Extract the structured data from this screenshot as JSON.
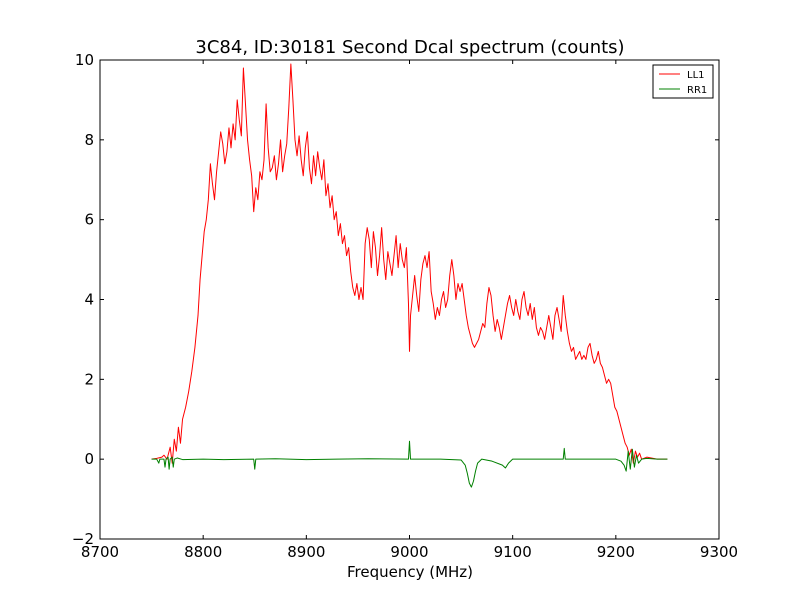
{
  "chart_data": {
    "type": "line",
    "title": "3C84, ID:30181 Second Dcal spectrum (counts)",
    "xlabel": "Frequency (MHz)",
    "ylabel": "",
    "xlim": [
      8700,
      9300
    ],
    "ylim": [
      -2,
      10
    ],
    "xticks": [
      8700,
      8800,
      8900,
      9000,
      9100,
      9200,
      9300
    ],
    "yticks": [
      -2,
      0,
      2,
      4,
      6,
      8,
      10
    ],
    "legend_position": "top-right",
    "grid": false,
    "series": [
      {
        "name": "LL1",
        "color": "#ff0000",
        "points": [
          [
            8750,
            0.0
          ],
          [
            8755,
            0.02
          ],
          [
            8760,
            0.05
          ],
          [
            8762,
            0.1
          ],
          [
            8765,
            0.0
          ],
          [
            8768,
            0.3
          ],
          [
            8770,
            -0.1
          ],
          [
            8772,
            0.5
          ],
          [
            8774,
            0.2
          ],
          [
            8776,
            0.8
          ],
          [
            8778,
            0.4
          ],
          [
            8780,
            1.0
          ],
          [
            8783,
            1.3
          ],
          [
            8786,
            1.7
          ],
          [
            8789,
            2.2
          ],
          [
            8792,
            2.8
          ],
          [
            8795,
            3.6
          ],
          [
            8797,
            4.5
          ],
          [
            8799,
            5.1
          ],
          [
            8801,
            5.7
          ],
          [
            8803,
            6.0
          ],
          [
            8805,
            6.5
          ],
          [
            8807,
            7.4
          ],
          [
            8809,
            6.9
          ],
          [
            8811,
            6.5
          ],
          [
            8813,
            7.2
          ],
          [
            8815,
            7.7
          ],
          [
            8817,
            8.2
          ],
          [
            8819,
            7.9
          ],
          [
            8821,
            7.4
          ],
          [
            8823,
            7.7
          ],
          [
            8825,
            8.3
          ],
          [
            8827,
            7.8
          ],
          [
            8829,
            8.4
          ],
          [
            8831,
            8.0
          ],
          [
            8833,
            9.0
          ],
          [
            8835,
            8.5
          ],
          [
            8837,
            8.1
          ],
          [
            8839,
            9.8
          ],
          [
            8841,
            8.9
          ],
          [
            8843,
            8.0
          ],
          [
            8845,
            7.5
          ],
          [
            8847,
            7.1
          ],
          [
            8849,
            6.2
          ],
          [
            8851,
            6.8
          ],
          [
            8853,
            6.5
          ],
          [
            8855,
            7.2
          ],
          [
            8857,
            7.0
          ],
          [
            8859,
            7.5
          ],
          [
            8861,
            8.9
          ],
          [
            8863,
            7.8
          ],
          [
            8865,
            7.2
          ],
          [
            8867,
            7.3
          ],
          [
            8869,
            7.6
          ],
          [
            8871,
            7.0
          ],
          [
            8873,
            7.4
          ],
          [
            8875,
            8.0
          ],
          [
            8877,
            7.2
          ],
          [
            8879,
            7.6
          ],
          [
            8881,
            7.9
          ],
          [
            8883,
            8.8
          ],
          [
            8885,
            9.9
          ],
          [
            8887,
            9.0
          ],
          [
            8889,
            8.0
          ],
          [
            8891,
            7.6
          ],
          [
            8893,
            8.1
          ],
          [
            8895,
            7.5
          ],
          [
            8897,
            7.1
          ],
          [
            8899,
            7.8
          ],
          [
            8901,
            8.2
          ],
          [
            8903,
            7.3
          ],
          [
            8905,
            6.9
          ],
          [
            8907,
            7.6
          ],
          [
            8909,
            7.1
          ],
          [
            8911,
            7.7
          ],
          [
            8913,
            7.3
          ],
          [
            8915,
            7.0
          ],
          [
            8917,
            7.5
          ],
          [
            8919,
            6.6
          ],
          [
            8921,
            6.9
          ],
          [
            8923,
            6.3
          ],
          [
            8925,
            6.6
          ],
          [
            8927,
            6.0
          ],
          [
            8929,
            6.2
          ],
          [
            8931,
            5.6
          ],
          [
            8933,
            5.9
          ],
          [
            8935,
            5.4
          ],
          [
            8937,
            5.6
          ],
          [
            8939,
            5.1
          ],
          [
            8941,
            5.3
          ],
          [
            8943,
            4.7
          ],
          [
            8945,
            4.3
          ],
          [
            8947,
            4.1
          ],
          [
            8949,
            4.4
          ],
          [
            8951,
            4.0
          ],
          [
            8953,
            4.3
          ],
          [
            8955,
            4.0
          ],
          [
            8957,
            5.4
          ],
          [
            8959,
            5.8
          ],
          [
            8961,
            5.5
          ],
          [
            8963,
            4.8
          ],
          [
            8965,
            5.7
          ],
          [
            8967,
            5.3
          ],
          [
            8969,
            4.6
          ],
          [
            8971,
            5.1
          ],
          [
            8973,
            5.8
          ],
          [
            8975,
            5.0
          ],
          [
            8977,
            4.5
          ],
          [
            8979,
            5.2
          ],
          [
            8981,
            4.9
          ],
          [
            8983,
            4.6
          ],
          [
            8985,
            5.1
          ],
          [
            8987,
            5.6
          ],
          [
            8989,
            4.8
          ],
          [
            8991,
            5.4
          ],
          [
            8993,
            5.0
          ],
          [
            8995,
            4.8
          ],
          [
            8997,
            5.3
          ],
          [
            8999,
            3.9
          ],
          [
            9000,
            2.7
          ],
          [
            9001,
            3.6
          ],
          [
            9003,
            4.1
          ],
          [
            9005,
            4.6
          ],
          [
            9007,
            4.1
          ],
          [
            9009,
            3.7
          ],
          [
            9011,
            4.5
          ],
          [
            9013,
            4.9
          ],
          [
            9015,
            5.1
          ],
          [
            9017,
            4.8
          ],
          [
            9019,
            5.2
          ],
          [
            9021,
            4.2
          ],
          [
            9023,
            3.9
          ],
          [
            9025,
            3.5
          ],
          [
            9027,
            3.8
          ],
          [
            9029,
            3.6
          ],
          [
            9031,
            4.0
          ],
          [
            9033,
            4.2
          ],
          [
            9035,
            3.8
          ],
          [
            9037,
            4.0
          ],
          [
            9039,
            4.6
          ],
          [
            9041,
            5.0
          ],
          [
            9043,
            4.6
          ],
          [
            9045,
            4.0
          ],
          [
            9047,
            4.4
          ],
          [
            9049,
            4.2
          ],
          [
            9051,
            4.4
          ],
          [
            9053,
            4.0
          ],
          [
            9055,
            3.6
          ],
          [
            9057,
            3.3
          ],
          [
            9059,
            3.1
          ],
          [
            9061,
            2.9
          ],
          [
            9063,
            2.8
          ],
          [
            9065,
            2.9
          ],
          [
            9067,
            3.0
          ],
          [
            9069,
            3.2
          ],
          [
            9071,
            3.4
          ],
          [
            9073,
            3.3
          ],
          [
            9075,
            3.9
          ],
          [
            9077,
            4.3
          ],
          [
            9079,
            4.1
          ],
          [
            9081,
            3.6
          ],
          [
            9083,
            3.2
          ],
          [
            9085,
            3.5
          ],
          [
            9087,
            3.3
          ],
          [
            9089,
            3.0
          ],
          [
            9091,
            3.3
          ],
          [
            9093,
            3.6
          ],
          [
            9095,
            3.9
          ],
          [
            9097,
            4.1
          ],
          [
            9099,
            3.8
          ],
          [
            9101,
            3.6
          ],
          [
            9103,
            4.0
          ],
          [
            9105,
            3.7
          ],
          [
            9107,
            3.5
          ],
          [
            9109,
            4.0
          ],
          [
            9111,
            4.2
          ],
          [
            9113,
            3.8
          ],
          [
            9115,
            3.6
          ],
          [
            9117,
            3.9
          ],
          [
            9119,
            3.5
          ],
          [
            9121,
            3.8
          ],
          [
            9123,
            3.3
          ],
          [
            9125,
            3.1
          ],
          [
            9127,
            3.3
          ],
          [
            9129,
            3.2
          ],
          [
            9131,
            3.0
          ],
          [
            9133,
            3.3
          ],
          [
            9135,
            3.6
          ],
          [
            9137,
            3.3
          ],
          [
            9139,
            3.0
          ],
          [
            9141,
            3.6
          ],
          [
            9143,
            3.8
          ],
          [
            9145,
            3.5
          ],
          [
            9147,
            3.2
          ],
          [
            9149,
            4.1
          ],
          [
            9151,
            3.6
          ],
          [
            9153,
            3.2
          ],
          [
            9155,
            2.9
          ],
          [
            9157,
            2.7
          ],
          [
            9159,
            2.8
          ],
          [
            9161,
            2.5
          ],
          [
            9163,
            2.6
          ],
          [
            9165,
            2.7
          ],
          [
            9167,
            2.5
          ],
          [
            9169,
            2.6
          ],
          [
            9171,
            2.5
          ],
          [
            9173,
            2.8
          ],
          [
            9175,
            2.9
          ],
          [
            9177,
            2.6
          ],
          [
            9179,
            2.4
          ],
          [
            9181,
            2.5
          ],
          [
            9183,
            2.7
          ],
          [
            9185,
            2.4
          ],
          [
            9187,
            2.3
          ],
          [
            9189,
            2.1
          ],
          [
            9191,
            1.9
          ],
          [
            9193,
            2.0
          ],
          [
            9195,
            1.9
          ],
          [
            9197,
            1.6
          ],
          [
            9199,
            1.3
          ],
          [
            9201,
            1.2
          ],
          [
            9203,
            1.0
          ],
          [
            9205,
            0.8
          ],
          [
            9207,
            0.6
          ],
          [
            9209,
            0.4
          ],
          [
            9211,
            0.3
          ],
          [
            9213,
            0.1
          ],
          [
            9215,
            0.25
          ],
          [
            9217,
            -0.1
          ],
          [
            9219,
            0.2
          ],
          [
            9221,
            0.05
          ],
          [
            9223,
            0.15
          ],
          [
            9225,
            0.0
          ],
          [
            9230,
            0.05
          ],
          [
            9240,
            0.0
          ],
          [
            9250,
            0.0
          ]
        ]
      },
      {
        "name": "RR1",
        "color": "#008000",
        "points": [
          [
            8750,
            0.0
          ],
          [
            8755,
            0.0
          ],
          [
            8757,
            -0.1
          ],
          [
            8758,
            0.0
          ],
          [
            8762,
            0.0
          ],
          [
            8763,
            -0.2
          ],
          [
            8764,
            0.0
          ],
          [
            8766,
            0.05
          ],
          [
            8767,
            -0.25
          ],
          [
            8768,
            0.0
          ],
          [
            8770,
            0.05
          ],
          [
            8771,
            -0.2
          ],
          [
            8772,
            0.0
          ],
          [
            8775,
            0.03
          ],
          [
            8780,
            -0.01
          ],
          [
            8800,
            0.0
          ],
          [
            8820,
            -0.01
          ],
          [
            8849,
            0.0
          ],
          [
            8850,
            -0.25
          ],
          [
            8851,
            0.0
          ],
          [
            8870,
            0.01
          ],
          [
            8900,
            -0.01
          ],
          [
            8930,
            0.0
          ],
          [
            8960,
            0.01
          ],
          [
            8999,
            0.0
          ],
          [
            9000,
            0.45
          ],
          [
            9001,
            0.0
          ],
          [
            9030,
            0.0
          ],
          [
            9050,
            -0.02
          ],
          [
            9054,
            -0.15
          ],
          [
            9056,
            -0.35
          ],
          [
            9058,
            -0.6
          ],
          [
            9060,
            -0.7
          ],
          [
            9062,
            -0.55
          ],
          [
            9064,
            -0.3
          ],
          [
            9066,
            -0.1
          ],
          [
            9070,
            0.0
          ],
          [
            9080,
            -0.05
          ],
          [
            9090,
            -0.15
          ],
          [
            9093,
            -0.22
          ],
          [
            9096,
            -0.1
          ],
          [
            9100,
            0.0
          ],
          [
            9120,
            0.0
          ],
          [
            9149,
            0.0
          ],
          [
            9150,
            0.27
          ],
          [
            9151,
            0.0
          ],
          [
            9180,
            0.0
          ],
          [
            9200,
            0.0
          ],
          [
            9205,
            -0.05
          ],
          [
            9208,
            -0.15
          ],
          [
            9210,
            -0.3
          ],
          [
            9212,
            0.2
          ],
          [
            9214,
            -0.25
          ],
          [
            9216,
            0.25
          ],
          [
            9218,
            -0.2
          ],
          [
            9220,
            0.1
          ],
          [
            9222,
            -0.1
          ],
          [
            9225,
            0.0
          ],
          [
            9230,
            0.02
          ],
          [
            9240,
            0.0
          ],
          [
            9250,
            0.0
          ]
        ]
      }
    ]
  }
}
